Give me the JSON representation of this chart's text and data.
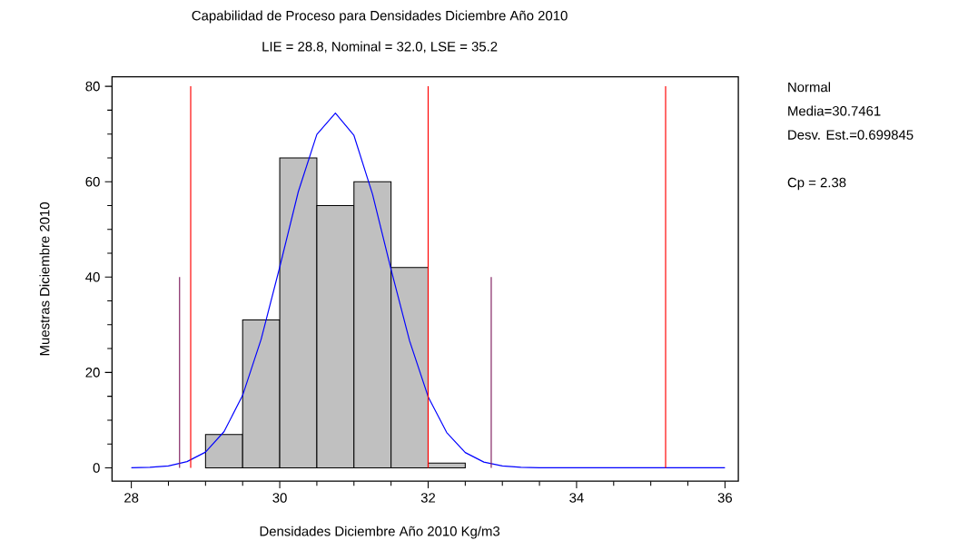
{
  "chart_data": {
    "type": "histogram",
    "title": "Capabilidad de Proceso para  Densidades Diciembre Año 2010",
    "subtitle": "LIE = 28.8, Nominal = 32.0, LSE = 35.2",
    "xlabel": "Densidades Diciembre Año 2010 Kg/m3",
    "ylabel": "Muestras Diciembre 2010",
    "bins": [
      29,
      29.5,
      30,
      30.5,
      31,
      31.5,
      32,
      32.5
    ],
    "values": [
      7,
      31,
      65,
      55,
      60,
      42,
      1
    ],
    "color": "#c0c0c0",
    "series": [
      {
        "type": "line",
        "color": "#0000ff",
        "x": [
          28,
          28.25,
          28.5,
          28.75,
          29,
          29.25,
          29.5,
          29.75,
          30,
          30.25,
          30.5,
          30.75,
          31,
          31.25,
          31.5,
          31.75,
          32,
          32.25,
          32.5,
          32.75,
          33,
          33.25,
          33.5,
          34,
          35,
          36
        ],
        "values": [
          0,
          0.1,
          0.4,
          1.3,
          3.3,
          7.6,
          15.2,
          27,
          42.1,
          57.9,
          69.9,
          74.4,
          69.7,
          57.4,
          41.6,
          26.6,
          14.9,
          7.4,
          3.2,
          1.2,
          0.4,
          0.1,
          0,
          0,
          0,
          0
        ]
      },
      {
        "type": "line",
        "color": "#ff0000",
        "x": [
          28.8,
          28.8
        ],
        "values": [
          0,
          80
        ]
      },
      {
        "type": "line",
        "color": "#ff0000",
        "x": [
          32,
          32
        ],
        "values": [
          0,
          80
        ]
      },
      {
        "type": "line",
        "color": "#ff0000",
        "x": [
          35.2,
          35.2
        ],
        "values": [
          0,
          80
        ]
      },
      {
        "type": "line",
        "color": "#802060",
        "x": [
          28.65,
          28.65
        ],
        "values": [
          0,
          40
        ]
      },
      {
        "type": "line",
        "color": "#802060",
        "x": [
          32.85,
          32.85
        ],
        "values": [
          0,
          40
        ]
      }
    ],
    "xlim": [
      27.74,
      36.18
    ],
    "ylim": [
      -2.8,
      82
    ],
    "xticks": [
      28,
      30,
      32,
      34,
      36
    ],
    "yticks": [
      0,
      20,
      40,
      60,
      80
    ],
    "grid": false,
    "marker": "none",
    "annotations": [
      "Normal",
      "Media=30.7461",
      "Desv. Est.=0.699845",
      "Cp = 2.38"
    ]
  }
}
